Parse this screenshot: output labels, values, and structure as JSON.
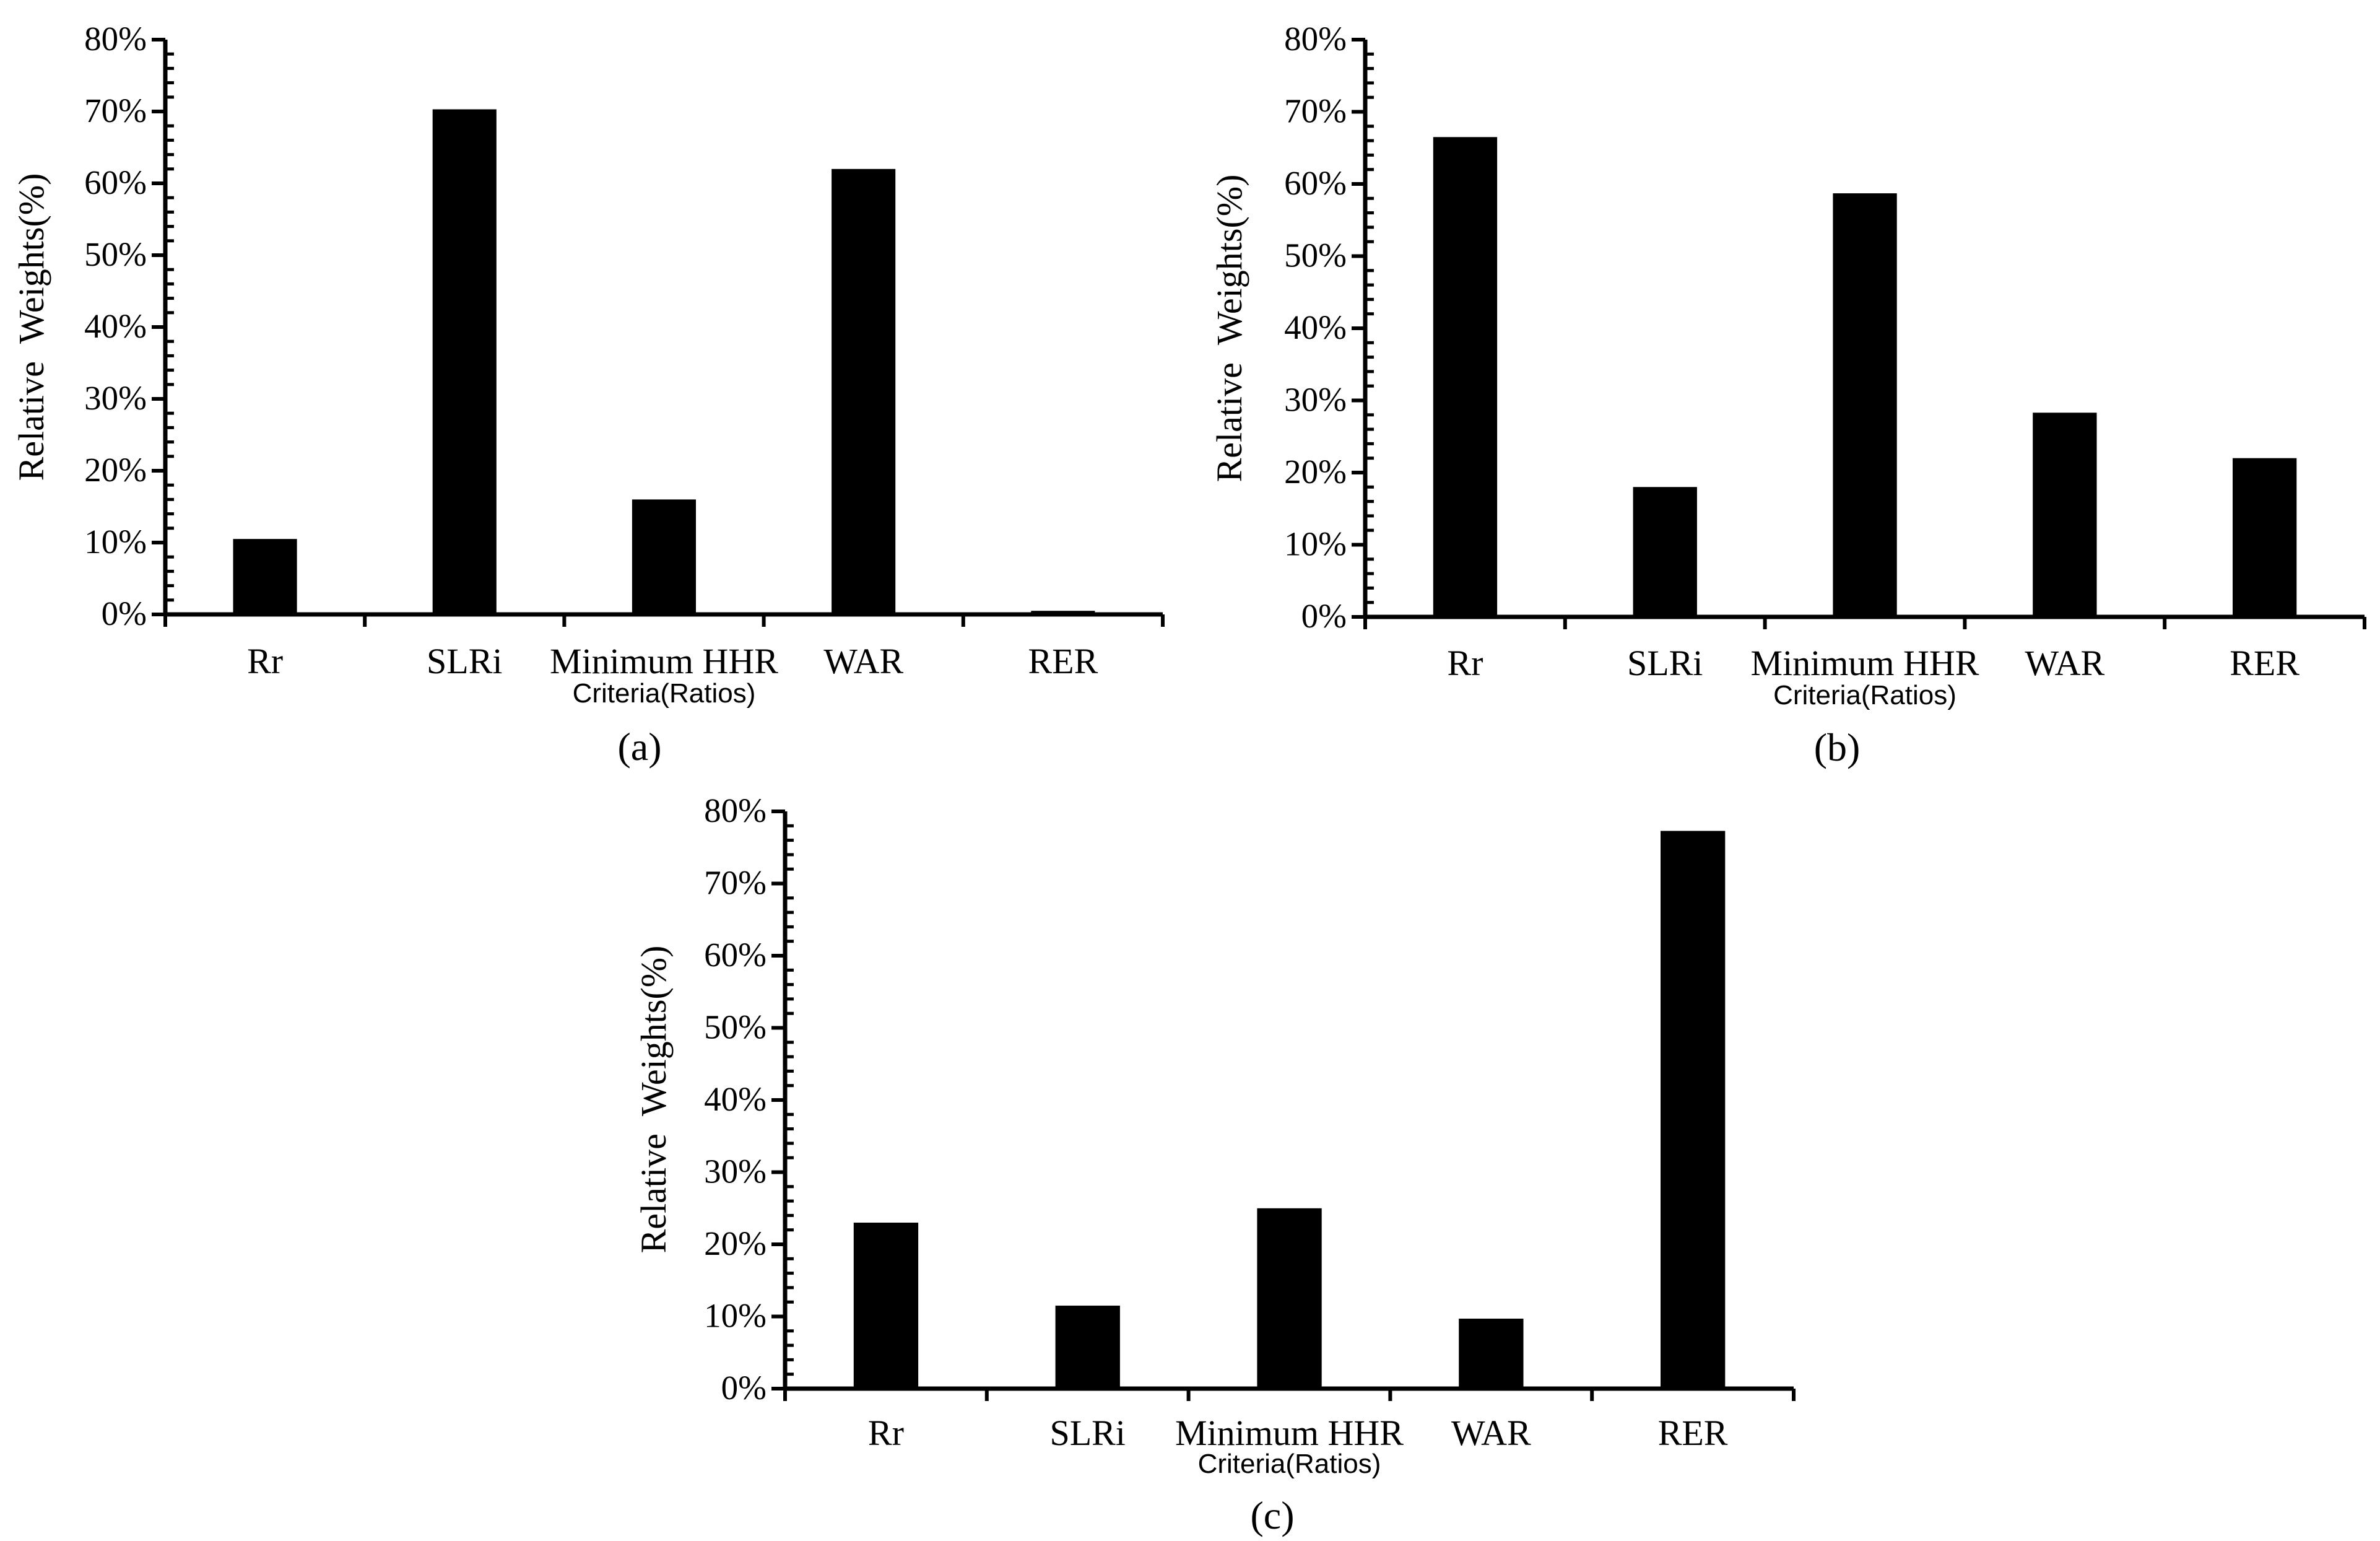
{
  "chart_data": [
    {
      "type": "bar",
      "panel_label": "(a)",
      "xlabel": "Criteria(Ratios)",
      "ylabel": "Relative  Weights(%)",
      "categories": [
        "Rr",
        "SLRi",
        "Minimum HHR",
        "WAR",
        "RER"
      ],
      "values": [
        10.5,
        70.3,
        16.0,
        62.0,
        0.5
      ],
      "yticks": [
        "0%",
        "10%",
        "20%",
        "30%",
        "40%",
        "50%",
        "60%",
        "70%",
        "80%"
      ],
      "ylim": [
        0,
        80
      ],
      "grid": false,
      "legend": false,
      "bar_color": "#000000"
    },
    {
      "type": "bar",
      "panel_label": "(b)",
      "xlabel": "Criteria(Ratios)",
      "ylabel": "Relative  Weights(%)",
      "categories": [
        "Rr",
        "SLRi",
        "Minimum HHR",
        "WAR",
        "RER"
      ],
      "values": [
        66.5,
        18.0,
        58.7,
        28.3,
        22.0
      ],
      "yticks": [
        "0%",
        "10%",
        "20%",
        "30%",
        "40%",
        "50%",
        "60%",
        "70%",
        "80%"
      ],
      "ylim": [
        0,
        80
      ],
      "grid": false,
      "legend": false,
      "bar_color": "#000000"
    },
    {
      "type": "bar",
      "panel_label": "(c)",
      "xlabel": "Criteria(Ratios)",
      "ylabel": "Relative  Weights(%)",
      "categories": [
        "Rr",
        "SLRi",
        "Minimum HHR",
        "WAR",
        "RER"
      ],
      "values": [
        23.0,
        11.5,
        25.0,
        9.7,
        77.3
      ],
      "yticks": [
        "0%",
        "10%",
        "20%",
        "30%",
        "40%",
        "50%",
        "60%",
        "70%",
        "80%"
      ],
      "ylim": [
        0,
        80
      ],
      "grid": false,
      "legend": false,
      "bar_color": "#000000"
    }
  ]
}
